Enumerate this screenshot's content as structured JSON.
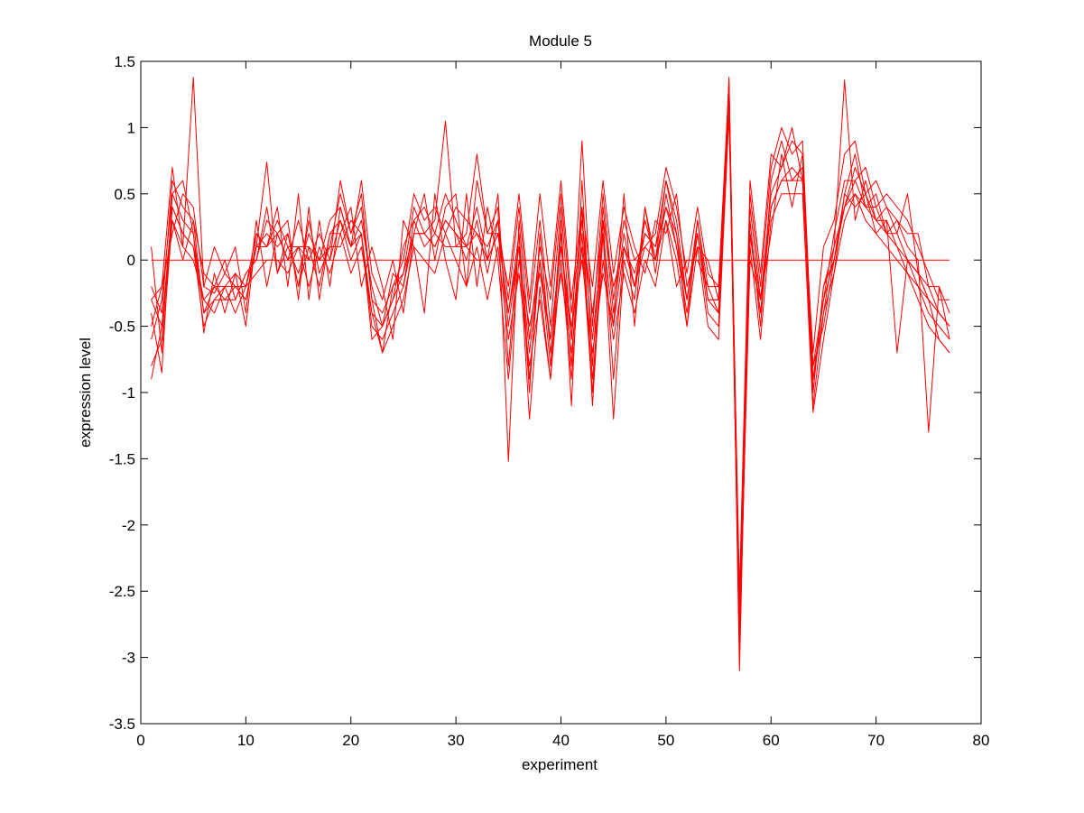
{
  "chart_data": {
    "type": "line",
    "title": "Module 5",
    "xlabel": "experiment",
    "ylabel": "expression level",
    "xlim": [
      0,
      80
    ],
    "ylim": [
      -3.5,
      1.5
    ],
    "xticks": [
      0,
      10,
      20,
      30,
      40,
      50,
      60,
      70,
      80
    ],
    "xtick_labels": [
      "0",
      "10",
      "20",
      "30",
      "40",
      "50",
      "60",
      "70",
      "80"
    ],
    "yticks": [
      1.5,
      1,
      0.5,
      0,
      -0.5,
      -1,
      -1.5,
      -2,
      -2.5,
      -3,
      -3.5
    ],
    "ytick_labels": [
      "1.5",
      "1",
      "0.5",
      "0",
      "-0.5",
      "-1",
      "-1.5",
      "-2",
      "-2.5",
      "-3",
      "-3.5"
    ],
    "grid": false,
    "line_color": "#ff0000",
    "x": [
      1,
      2,
      3,
      4,
      5,
      6,
      7,
      8,
      9,
      10,
      11,
      12,
      13,
      14,
      15,
      16,
      17,
      18,
      19,
      20,
      21,
      22,
      23,
      24,
      25,
      26,
      27,
      28,
      29,
      30,
      31,
      32,
      33,
      34,
      35,
      36,
      37,
      38,
      39,
      40,
      41,
      42,
      43,
      44,
      45,
      46,
      47,
      48,
      49,
      50,
      51,
      52,
      53,
      54,
      55,
      56,
      57,
      58,
      59,
      60,
      61,
      62,
      63,
      64,
      65,
      66,
      67,
      68,
      69,
      70,
      71,
      72,
      73,
      74,
      75,
      76,
      77
    ],
    "series": [
      {
        "values": [
          -0.3,
          -0.2,
          0.7,
          0.1,
          1.38,
          -0.2,
          -0.25,
          -0.1,
          -0.2,
          -0.3,
          0.1,
          0.74,
          -0.1,
          0.2,
          -0.2,
          0.3,
          -0.1,
          0.1,
          0.5,
          0.2,
          0.4,
          -0.3,
          -0.7,
          -0.2,
          -0.1,
          0.4,
          0.2,
          0.3,
          1.05,
          0.1,
          0.2,
          0.8,
          0.2,
          0.4,
          -1.52,
          0.3,
          -0.6,
          0.1,
          -0.3,
          0.5,
          -0.4,
          0.3,
          -0.4,
          0.3,
          -0.2,
          0.1,
          -0.1,
          0.2,
          0.1,
          0.6,
          0.3,
          -0.3,
          0.3,
          -0.2,
          -0.4,
          1.38,
          -2.9,
          0.4,
          -0.3,
          0.5,
          0.7,
          0.9,
          0.8,
          -1.0,
          -0.2,
          0.1,
          1.36,
          0.3,
          0.6,
          0.3,
          0.4,
          0.2,
          0.5,
          -0.1,
          -0.3,
          -0.4,
          -0.5
        ]
      },
      {
        "values": [
          -0.6,
          -0.3,
          0.5,
          0.3,
          0.2,
          -0.4,
          -0.3,
          -0.2,
          -0.1,
          -0.2,
          0.2,
          0.1,
          0.3,
          0.1,
          -0.1,
          0.2,
          0.0,
          0.3,
          0.4,
          0.1,
          0.3,
          -0.2,
          -0.5,
          -0.3,
          0.1,
          0.3,
          0.4,
          0.2,
          0.5,
          0.3,
          0.1,
          0.4,
          0.0,
          0.5,
          -0.8,
          0.2,
          -0.9,
          0.0,
          -0.8,
          0.3,
          -1.1,
          0.6,
          -0.8,
          0.4,
          -0.4,
          0.2,
          -0.2,
          0.3,
          0.0,
          0.6,
          0.2,
          -0.5,
          0.3,
          -0.3,
          -0.3,
          1.3,
          -3.1,
          0.3,
          -0.5,
          0.6,
          0.9,
          0.6,
          0.7,
          -1.1,
          -0.4,
          -0.1,
          0.5,
          0.8,
          0.4,
          0.5,
          0.2,
          0.3,
          0.1,
          0.0,
          -1.3,
          -0.2,
          -0.6
        ]
      },
      {
        "values": [
          -0.8,
          -0.6,
          0.4,
          0.2,
          0.1,
          -0.5,
          -0.3,
          -0.3,
          -0.2,
          -0.3,
          0.1,
          0.2,
          0.1,
          0.2,
          -0.2,
          0.1,
          -0.2,
          0.2,
          0.3,
          0.0,
          0.2,
          -0.5,
          -0.6,
          -0.4,
          -0.2,
          0.2,
          0.2,
          0.1,
          0.3,
          0.2,
          0.0,
          0.3,
          -0.1,
          0.3,
          -0.5,
          0.1,
          -1.2,
          -0.2,
          -0.9,
          0.2,
          -0.8,
          0.4,
          -1.1,
          0.2,
          -1.2,
          0.0,
          -0.3,
          0.4,
          -0.1,
          0.5,
          0.1,
          -0.4,
          0.2,
          -0.4,
          -0.5,
          1.2,
          -2.8,
          0.2,
          -0.4,
          0.4,
          0.6,
          0.7,
          0.6,
          -0.8,
          -0.5,
          0.0,
          0.4,
          0.7,
          0.5,
          0.3,
          0.3,
          -0.7,
          0.0,
          -0.2,
          -0.3,
          -0.6,
          -0.7
        ]
      },
      {
        "values": [
          -0.2,
          -0.4,
          0.6,
          0.4,
          0.3,
          -0.1,
          -0.2,
          0.0,
          -0.3,
          -0.1,
          0.0,
          0.3,
          0.2,
          0.0,
          0.3,
          0.0,
          0.2,
          0.0,
          0.6,
          0.2,
          0.5,
          -0.3,
          -0.4,
          -0.2,
          0.0,
          0.5,
          0.3,
          0.4,
          0.2,
          0.4,
          0.3,
          0.2,
          0.1,
          0.3,
          -0.3,
          0.4,
          -0.4,
          0.3,
          -0.5,
          0.4,
          -0.6,
          0.9,
          -0.5,
          0.5,
          -0.3,
          0.3,
          0.0,
          0.1,
          0.2,
          0.7,
          0.4,
          -0.1,
          0.4,
          -0.1,
          -0.2,
          1.35,
          -2.6,
          0.5,
          -0.2,
          0.7,
          1.0,
          0.8,
          0.9,
          -0.9,
          -0.3,
          0.2,
          0.6,
          0.6,
          0.7,
          0.4,
          0.5,
          0.4,
          0.3,
          0.1,
          -0.1,
          -0.3,
          -0.3
        ]
      },
      {
        "values": [
          0.1,
          -0.7,
          0.3,
          0.1,
          0.0,
          -0.3,
          -0.4,
          -0.2,
          -0.4,
          -0.2,
          -0.1,
          0.0,
          0.0,
          -0.1,
          0.1,
          -0.2,
          0.1,
          -0.1,
          0.2,
          -0.1,
          0.1,
          -0.4,
          -0.7,
          -0.5,
          -0.3,
          0.1,
          0.0,
          -0.1,
          0.2,
          0.0,
          -0.2,
          0.1,
          -0.3,
          0.1,
          -0.6,
          -0.1,
          -0.8,
          -0.3,
          -0.9,
          0.0,
          -0.9,
          0.2,
          -0.9,
          0.0,
          -0.6,
          -0.1,
          -0.4,
          0.0,
          -0.2,
          0.3,
          0.0,
          -0.5,
          0.1,
          -0.5,
          -0.6,
          1.1,
          -2.7,
          0.1,
          -0.6,
          0.3,
          0.5,
          0.5,
          0.5,
          -1.15,
          -0.6,
          -0.1,
          0.3,
          0.5,
          0.3,
          0.2,
          0.1,
          0.0,
          -0.1,
          -0.3,
          -0.5,
          -0.6,
          -0.7
        ]
      },
      {
        "values": [
          -0.4,
          -0.85,
          0.5,
          0.6,
          0.2,
          -0.55,
          -0.1,
          -0.4,
          -0.1,
          -0.5,
          0.2,
          0.1,
          0.4,
          -0.2,
          0.5,
          -0.3,
          0.3,
          -0.2,
          0.4,
          0.1,
          0.6,
          -0.1,
          -0.3,
          0.0,
          -0.4,
          0.2,
          0.5,
          0.0,
          0.4,
          0.5,
          -0.2,
          0.6,
          0.2,
          0.2,
          -0.2,
          0.5,
          -0.3,
          0.5,
          -0.2,
          0.6,
          -0.3,
          0.4,
          -0.2,
          0.6,
          -0.1,
          0.4,
          0.1,
          -0.1,
          0.3,
          0.2,
          0.5,
          -0.2,
          0.1,
          0.0,
          -0.3,
          1.25,
          -2.5,
          0.6,
          -0.1,
          0.8,
          0.7,
          1.0,
          0.6,
          -0.7,
          0.1,
          0.3,
          0.8,
          0.9,
          0.5,
          0.6,
          0.4,
          0.3,
          0.2,
          0.2,
          -0.2,
          -0.2,
          -0.4
        ]
      },
      {
        "values": [
          -0.5,
          -0.2,
          0.2,
          0.5,
          0.4,
          -0.2,
          0.1,
          -0.1,
          0.1,
          -0.4,
          0.3,
          -0.2,
          0.2,
          0.3,
          -0.3,
          0.4,
          -0.3,
          0.2,
          0.2,
          0.4,
          -0.2,
          0.1,
          -0.2,
          -0.6,
          0.3,
          0.1,
          -0.4,
          0.5,
          0.0,
          -0.3,
          0.5,
          -0.2,
          0.4,
          0.0,
          -0.9,
          0.0,
          -0.5,
          -0.1,
          -0.6,
          0.1,
          -0.5,
          0.0,
          -0.7,
          -0.1,
          -0.5,
          0.5,
          -0.5,
          0.4,
          0.0,
          0.3,
          -0.2,
          0.0,
          0.0,
          -0.2,
          -0.2,
          1.3,
          -2.9,
          0.0,
          -0.3,
          0.2,
          0.8,
          0.4,
          0.8,
          -1.0,
          -0.2,
          0.0,
          0.5,
          0.4,
          0.5,
          0.2,
          0.3,
          0.1,
          -0.1,
          -0.2,
          -0.4,
          -0.5,
          -0.6
        ]
      },
      {
        "values": [
          -0.9,
          -0.5,
          0.3,
          0.0,
          0.3,
          -0.4,
          -0.2,
          -0.3,
          -0.3,
          -0.1,
          0.0,
          0.4,
          -0.1,
          0.1,
          0.1,
          0.0,
          0.0,
          0.1,
          0.1,
          0.3,
          0.2,
          -0.6,
          -0.5,
          -0.1,
          -0.2,
          0.3,
          0.1,
          0.2,
          0.1,
          0.1,
          0.1,
          0.0,
          0.0,
          0.2,
          -0.4,
          0.2,
          -1.0,
          0.2,
          -0.7,
          -0.1,
          -0.7,
          0.1,
          -1.0,
          0.3,
          -0.9,
          0.1,
          -0.2,
          0.2,
          0.1,
          0.4,
          0.2,
          -0.3,
          0.2,
          -0.3,
          -0.4,
          1.2,
          -3.0,
          0.2,
          -0.4,
          0.4,
          0.6,
          0.6,
          0.7,
          -0.9,
          -0.4,
          0.1,
          0.4,
          0.6,
          0.4,
          0.4,
          0.2,
          0.2,
          0.0,
          -0.1,
          -0.2,
          -0.4,
          -0.5
        ]
      },
      {
        "values": [
          -0.3,
          -0.5,
          0.4,
          0.2,
          0.1,
          -0.3,
          -0.2,
          -0.2,
          -0.2,
          -0.2,
          0.1,
          0.1,
          0.2,
          0.0,
          0.1,
          0.1,
          0.0,
          0.0,
          0.3,
          0.1,
          0.2,
          -0.4,
          -0.5,
          -0.3,
          -0.1,
          0.2,
          0.2,
          0.1,
          0.3,
          0.2,
          0.1,
          0.2,
          0.0,
          0.2,
          -0.4,
          0.1,
          -0.7,
          0.0,
          -0.6,
          0.1,
          -0.6,
          0.3,
          -0.6,
          0.2,
          -0.5,
          0.1,
          -0.2,
          0.1,
          0.0,
          0.4,
          0.1,
          -0.3,
          0.2,
          -0.3,
          -0.3,
          1.25,
          -2.8,
          0.2,
          -0.3,
          0.4,
          0.6,
          0.6,
          0.6,
          -0.8,
          -0.3,
          0.0,
          0.4,
          0.5,
          0.4,
          0.3,
          0.2,
          0.1,
          0.0,
          -0.1,
          -0.3,
          -0.4,
          -0.5
        ]
      },
      {
        "values": [
          0,
          0,
          0,
          0,
          0,
          0,
          0,
          0,
          0,
          0,
          0,
          0,
          0,
          0,
          0,
          0,
          0,
          0,
          0,
          0,
          0,
          0,
          0,
          0,
          0,
          0,
          0,
          0,
          0,
          0,
          0,
          0,
          0,
          0,
          0,
          0,
          0,
          0,
          0,
          0,
          0,
          0,
          0,
          0,
          0,
          0,
          0,
          0,
          0,
          0,
          0,
          0,
          0,
          0,
          0,
          0,
          0,
          0,
          0,
          0,
          0,
          0,
          0,
          0,
          0,
          0,
          0,
          0,
          0,
          0,
          0,
          0,
          0,
          0,
          0,
          0,
          0
        ]
      }
    ]
  }
}
